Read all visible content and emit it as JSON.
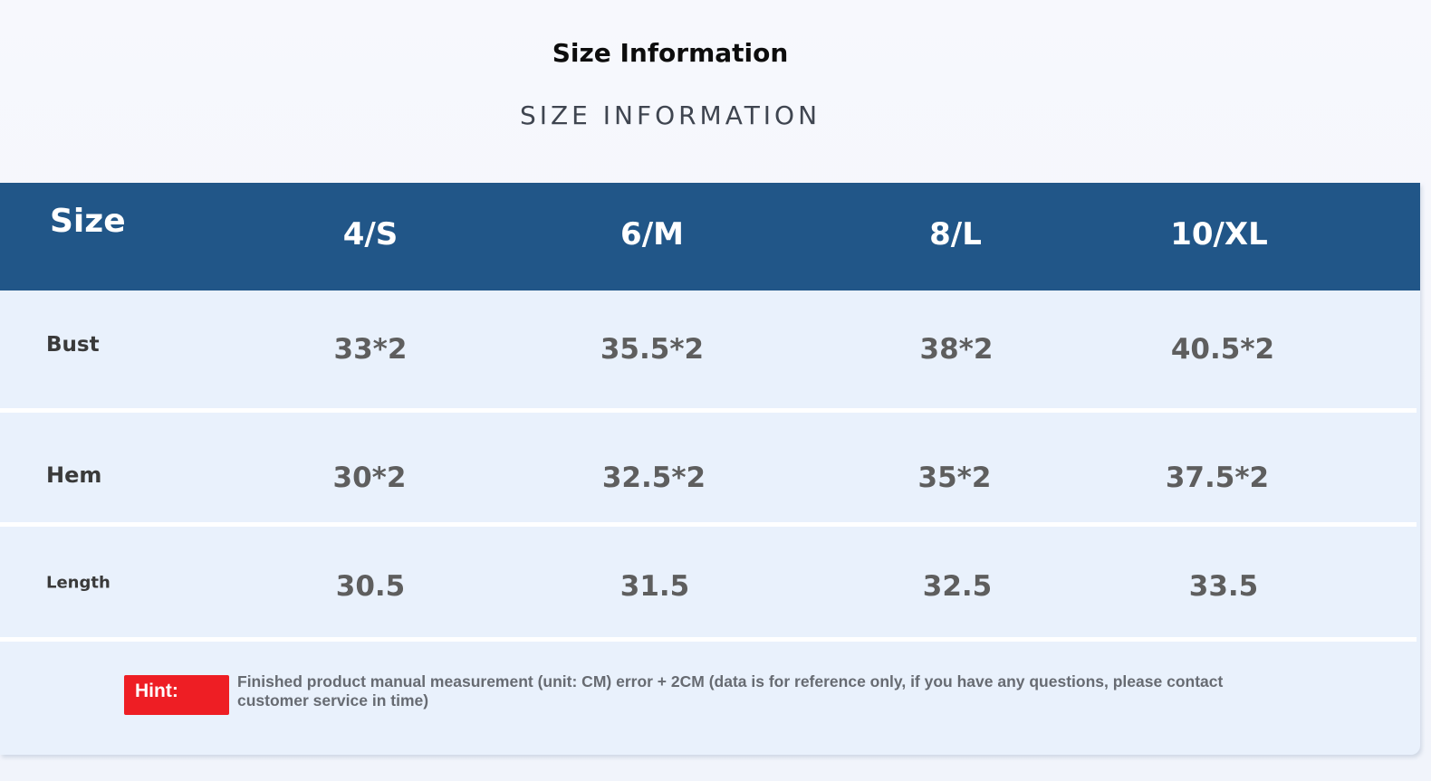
{
  "title": "Size Information",
  "subtitle": "SIZE INFORMATION",
  "table": {
    "header_label": "Size",
    "sizes": [
      "4/S",
      "6/M",
      "8/L",
      "10/XL"
    ],
    "rows": [
      {
        "label": "Bust",
        "values": [
          "33*2",
          "35.5*2",
          "38*2",
          "40.5*2"
        ]
      },
      {
        "label": "Hem",
        "values": [
          "30*2",
          "32.5*2",
          "35*2",
          "37.5*2"
        ]
      },
      {
        "label": "Length",
        "values": [
          "30.5",
          "31.5",
          "32.5",
          "33.5"
        ]
      }
    ]
  },
  "hint": {
    "label": "Hint:",
    "text": "Finished product manual measurement (unit: CM) error + 2CM (data is for reference only, if you have any questions, please contact customer service in time)"
  },
  "colors": {
    "header_bg": "#215688",
    "row_bg": "#e9f1fc",
    "hint_badge": "#ee1e24"
  }
}
